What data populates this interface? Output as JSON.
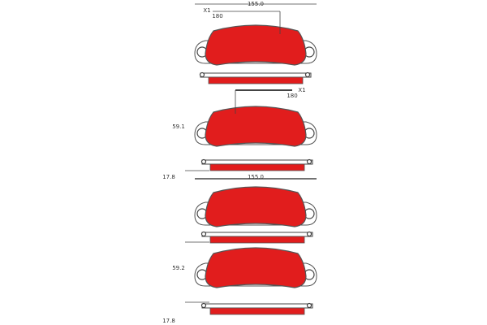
{
  "drawing": {
    "labels": [
      "155.0",
      "X1",
      "180",
      "X1",
      "180",
      "59.1",
      "17.8",
      "155.0",
      "59.2",
      "17.8"
    ]
  }
}
